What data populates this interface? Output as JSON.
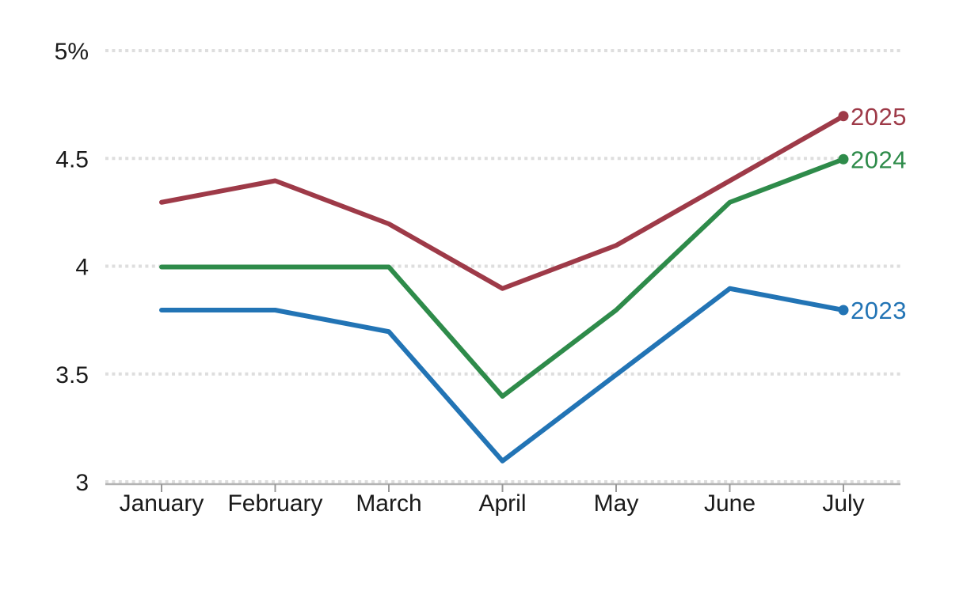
{
  "chart_data": {
    "type": "line",
    "title": "",
    "xlabel": "",
    "ylabel": "",
    "categories": [
      "January",
      "February",
      "March",
      "April",
      "May",
      "June",
      "July"
    ],
    "ylim": [
      3,
      5
    ],
    "y_ticks": [
      {
        "value": 5,
        "label": "5%"
      },
      {
        "value": 4.5,
        "label": "4.5"
      },
      {
        "value": 4,
        "label": "4"
      },
      {
        "value": 3.5,
        "label": "3.5"
      },
      {
        "value": 3,
        "label": "3"
      }
    ],
    "grid": "dotted-horizontal",
    "legend_position": "end-of-line-labels",
    "series": [
      {
        "name": "2023",
        "color": "#2274b5",
        "values": [
          3.8,
          3.8,
          3.7,
          3.1,
          3.5,
          3.9,
          3.8
        ]
      },
      {
        "name": "2024",
        "color": "#2e8b4a",
        "values": [
          4.0,
          4.0,
          4.0,
          3.4,
          3.8,
          4.3,
          4.5
        ]
      },
      {
        "name": "2025",
        "color": "#9e3a48",
        "values": [
          4.3,
          4.4,
          4.2,
          3.9,
          4.1,
          4.4,
          4.7
        ]
      }
    ],
    "colors": {
      "axis_label": "#1a1a1a",
      "axis_line": "#b3b3b3",
      "tick": "#999999",
      "gridline": "#dedede",
      "background": "#ffffff"
    }
  }
}
